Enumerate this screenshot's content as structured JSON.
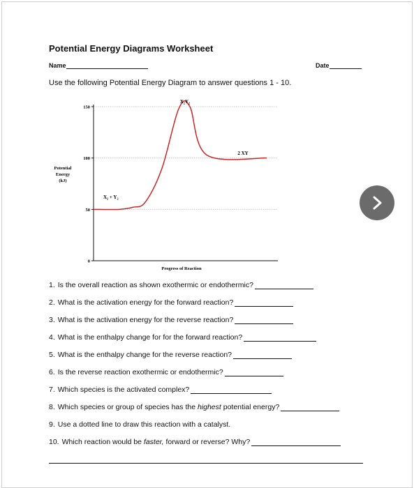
{
  "worksheet": {
    "title": "Potential Energy Diagrams Worksheet",
    "name_label": "Name",
    "date_label": "Date",
    "instructions": "Use the following Potential Energy Diagram to answer questions 1 - 10."
  },
  "chart_data": {
    "type": "line",
    "xlabel": "Progress of Reaction",
    "ylabel": "Potential Energy (kJ)",
    "ylabel_lines": [
      "Potential",
      "Energy",
      "(kJ)"
    ],
    "yticks": [
      "0",
      "50",
      "100",
      "150"
    ],
    "ylim": [
      0,
      155
    ],
    "grid": true,
    "annotations": [
      {
        "label": "X₂ + Y₂",
        "energy": 50
      },
      {
        "label": "X₂Y₂",
        "energy": 150
      },
      {
        "label": "2 XY",
        "energy": 100
      }
    ],
    "series": [
      {
        "x": [
          0,
          1,
          2,
          3,
          4,
          5,
          6,
          7,
          8
        ],
        "values": [
          50,
          50,
          52,
          57,
          90,
          148,
          150,
          103,
          100
        ]
      }
    ]
  },
  "questions": [
    {
      "num": "1.",
      "text": "Is the overall reaction as shown exothermic or endothermic?"
    },
    {
      "num": "2.",
      "text": "What is the activation energy for the forward reaction?"
    },
    {
      "num": "3.",
      "text": "What is the activation energy for the reverse reaction?"
    },
    {
      "num": "4.",
      "text": "What is the enthalpy change for for the forward reaction?"
    },
    {
      "num": "5.",
      "text": "What is the enthalpy change for the reverse reaction?"
    },
    {
      "num": "6.",
      "text": "Is the reverse reaction exothermic or endothermic?"
    },
    {
      "num": "7.",
      "text": "Which species is the activated complex?"
    },
    {
      "num": "8.",
      "text_before": "Which species or group of species has the",
      "text_em": "highest",
      "text_after": "potential energy?"
    },
    {
      "num": "9.",
      "text": "Use a dotted line to draw this reaction with a catalyst."
    },
    {
      "num": "10.",
      "text_before": "Which reaction would be",
      "text_em": "faster,",
      "text_after": "forward or reverse? Why?"
    }
  ],
  "nav": {
    "next_icon": "chevron-right-icon",
    "color": "#6b6b6b"
  }
}
